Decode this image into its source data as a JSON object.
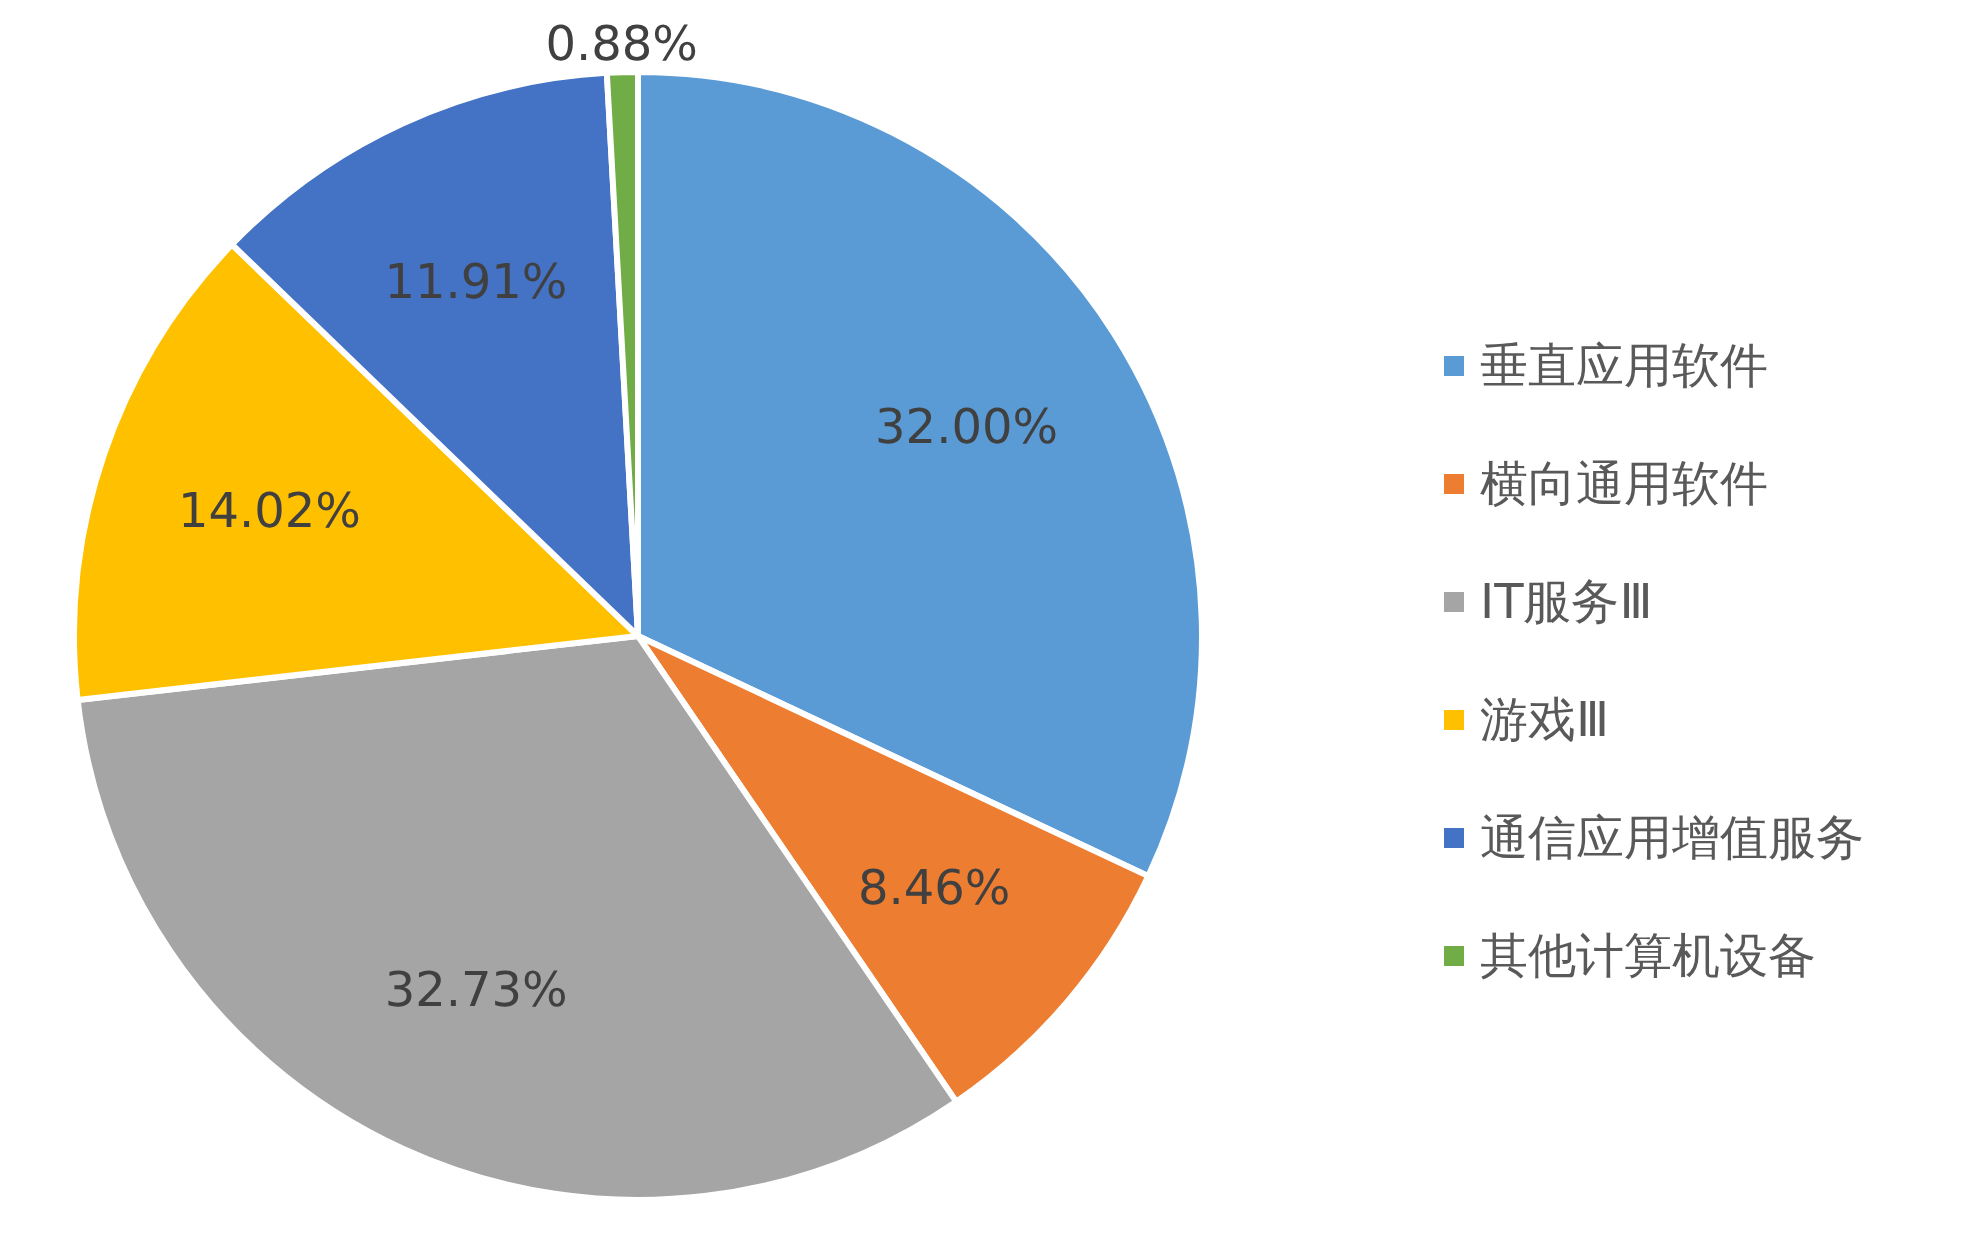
{
  "chart_data": {
    "type": "pie",
    "categories": [
      "垂直应用软件",
      "横向通用软件",
      "IT服务Ⅲ",
      "游戏Ⅲ",
      "通信应用增值服务",
      "其他计算机设备"
    ],
    "values": [
      32.0,
      8.46,
      32.73,
      14.02,
      11.91,
      0.88
    ],
    "value_labels": [
      "32.00%",
      "8.46%",
      "32.73%",
      "14.02%",
      "11.91%",
      "0.88%"
    ],
    "colors": [
      "#5b9bd5",
      "#ed7d31",
      "#a5a5a5",
      "#ffc000",
      "#4472c4",
      "#70ad47"
    ],
    "legend": "right"
  }
}
